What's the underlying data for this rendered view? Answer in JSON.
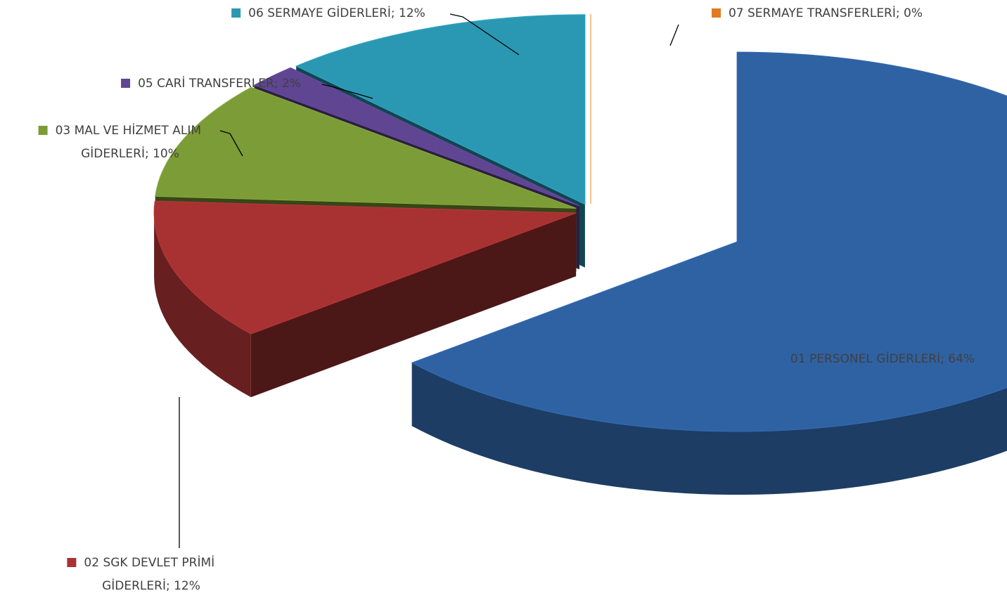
{
  "chart_data": {
    "type": "pie",
    "labels": [
      "01 PERSONEL GİDERLERİ; 64%",
      "02 SGK DEVLET PRİMİ GİDERLERİ; 12%",
      "03 MAL VE HİZMET ALIM GİDERLERİ; 10%",
      "05 CARİ TRANSFERLER; 2%",
      "06 SERMAYE GİDERLERİ; 12%",
      "07 SERMAYE TRANSFERLERİ; 0%"
    ],
    "values": [
      64,
      12,
      10,
      2,
      12,
      0
    ],
    "colors": [
      "#2f62a3",
      "#a83232",
      "#7b9c36",
      "#5f4592",
      "#2b98b3",
      "#e07b22"
    ]
  }
}
